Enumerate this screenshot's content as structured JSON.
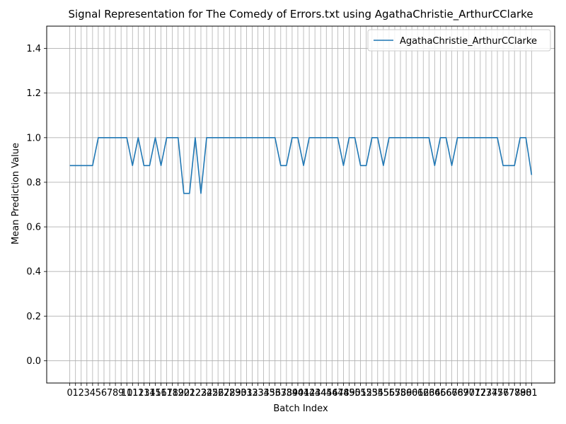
{
  "chart_data": {
    "type": "line",
    "title": "Signal Representation for The Comedy of Errors.txt using AgathaChristie_ArthurCClarke",
    "xlabel": "Batch Index",
    "ylabel": "Mean Prediction Value",
    "xlim": [
      -4.05,
      85.05
    ],
    "ylim": [
      -0.1,
      1.5
    ],
    "yticks": [
      0.0,
      0.2,
      0.4,
      0.6,
      0.8,
      1.0,
      1.2,
      1.4
    ],
    "ytick_labels": [
      "0.0",
      "0.2",
      "0.4",
      "0.6",
      "0.8",
      "1.0",
      "1.2",
      "1.4"
    ],
    "grid": true,
    "legend_position": "upper right",
    "series": [
      {
        "name": "AgathaChristie_ArthurCClarke",
        "color": "#1f77b4",
        "x": [
          0,
          1,
          2,
          3,
          4,
          5,
          6,
          7,
          8,
          9,
          10,
          11,
          12,
          13,
          14,
          15,
          16,
          17,
          18,
          19,
          20,
          21,
          22,
          23,
          24,
          25,
          26,
          27,
          28,
          29,
          30,
          31,
          32,
          33,
          34,
          35,
          36,
          37,
          38,
          39,
          40,
          41,
          42,
          43,
          44,
          45,
          46,
          47,
          48,
          49,
          50,
          51,
          52,
          53,
          54,
          55,
          56,
          57,
          58,
          59,
          60,
          61,
          62,
          63,
          64,
          65,
          66,
          67,
          68,
          69,
          70,
          71,
          72,
          73,
          74,
          75,
          76,
          77,
          78,
          79,
          80,
          81
        ],
        "y": [
          0.875,
          0.875,
          0.875,
          0.875,
          0.875,
          1.0,
          1.0,
          1.0,
          1.0,
          1.0,
          1.0,
          0.875,
          1.0,
          0.875,
          0.875,
          1.0,
          0.875,
          1.0,
          1.0,
          1.0,
          0.75,
          0.75,
          1.0,
          0.75,
          1.0,
          1.0,
          1.0,
          1.0,
          1.0,
          1.0,
          1.0,
          1.0,
          1.0,
          1.0,
          1.0,
          1.0,
          1.0,
          0.875,
          0.875,
          1.0,
          1.0,
          0.875,
          1.0,
          1.0,
          1.0,
          1.0,
          1.0,
          1.0,
          0.875,
          1.0,
          1.0,
          0.875,
          0.875,
          1.0,
          1.0,
          0.875,
          1.0,
          1.0,
          1.0,
          1.0,
          1.0,
          1.0,
          1.0,
          1.0,
          0.875,
          1.0,
          1.0,
          0.875,
          1.0,
          1.0,
          1.0,
          1.0,
          1.0,
          1.0,
          1.0,
          1.0,
          0.875,
          0.875,
          0.875,
          1.0,
          1.0,
          0.833
        ]
      }
    ]
  }
}
